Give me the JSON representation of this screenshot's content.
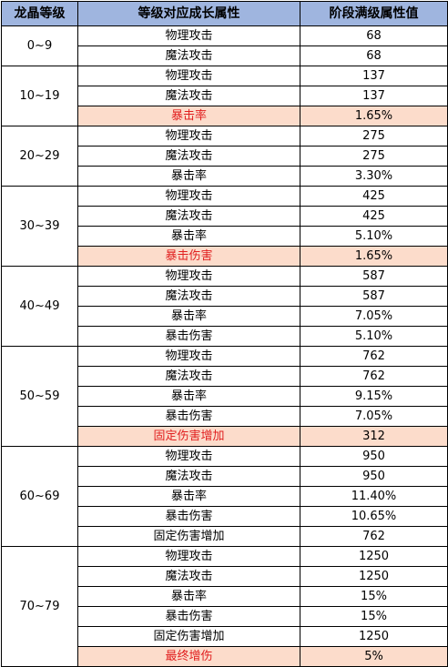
{
  "colors": {
    "header_bg": "#9fb5df",
    "highlight_bg": "#fcdccb",
    "highlight_text": "#e11f1f"
  },
  "header": {
    "col1": "龙晶等级",
    "col2": "等级对应成长属性",
    "col3": "阶段满级属性值"
  },
  "groups": [
    {
      "level": "0~9",
      "rows": [
        {
          "attr": "物理攻击",
          "value": "68",
          "highlight": false
        },
        {
          "attr": "魔法攻击",
          "value": "68",
          "highlight": false
        }
      ]
    },
    {
      "level": "10~19",
      "rows": [
        {
          "attr": "物理攻击",
          "value": "137",
          "highlight": false
        },
        {
          "attr": "魔法攻击",
          "value": "137",
          "highlight": false
        },
        {
          "attr": "暴击率",
          "value": "1.65%",
          "highlight": true
        }
      ]
    },
    {
      "level": "20~29",
      "rows": [
        {
          "attr": "物理攻击",
          "value": "275",
          "highlight": false
        },
        {
          "attr": "魔法攻击",
          "value": "275",
          "highlight": false
        },
        {
          "attr": "暴击率",
          "value": "3.30%",
          "highlight": false
        }
      ]
    },
    {
      "level": "30~39",
      "rows": [
        {
          "attr": "物理攻击",
          "value": "425",
          "highlight": false
        },
        {
          "attr": "魔法攻击",
          "value": "425",
          "highlight": false
        },
        {
          "attr": "暴击率",
          "value": "5.10%",
          "highlight": false
        },
        {
          "attr": "暴击伤害",
          "value": "1.65%",
          "highlight": true
        }
      ]
    },
    {
      "level": "40~49",
      "rows": [
        {
          "attr": "物理攻击",
          "value": "587",
          "highlight": false
        },
        {
          "attr": "魔法攻击",
          "value": "587",
          "highlight": false
        },
        {
          "attr": "暴击率",
          "value": "7.05%",
          "highlight": false
        },
        {
          "attr": "暴击伤害",
          "value": "5.10%",
          "highlight": false
        }
      ]
    },
    {
      "level": "50~59",
      "rows": [
        {
          "attr": "物理攻击",
          "value": "762",
          "highlight": false
        },
        {
          "attr": "魔法攻击",
          "value": "762",
          "highlight": false
        },
        {
          "attr": "暴击率",
          "value": "9.15%",
          "highlight": false
        },
        {
          "attr": "暴击伤害",
          "value": "7.05%",
          "highlight": false
        },
        {
          "attr": "固定伤害增加",
          "value": "312",
          "highlight": true
        }
      ]
    },
    {
      "level": "60~69",
      "rows": [
        {
          "attr": "物理攻击",
          "value": "950",
          "highlight": false
        },
        {
          "attr": "魔法攻击",
          "value": "950",
          "highlight": false
        },
        {
          "attr": "暴击率",
          "value": "11.40%",
          "highlight": false
        },
        {
          "attr": "暴击伤害",
          "value": "10.65%",
          "highlight": false
        },
        {
          "attr": "固定伤害增加",
          "value": "762",
          "highlight": false
        }
      ]
    },
    {
      "level": "70~79",
      "rows": [
        {
          "attr": "物理攻击",
          "value": "1250",
          "highlight": false
        },
        {
          "attr": "魔法攻击",
          "value": "1250",
          "highlight": false
        },
        {
          "attr": "暴击率",
          "value": "15%",
          "highlight": false
        },
        {
          "attr": "暴击伤害",
          "value": "15%",
          "highlight": false
        },
        {
          "attr": "固定伤害增加",
          "value": "1250",
          "highlight": false
        },
        {
          "attr": "最终增伤",
          "value": "5%",
          "highlight": true
        }
      ]
    }
  ]
}
